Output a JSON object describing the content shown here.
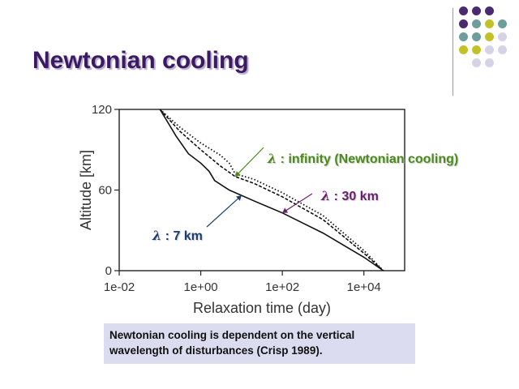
{
  "slide": {
    "title": "Newtonian cooling",
    "caption_line1": "Newtonian cooling is dependent on the vertical",
    "caption_line2": "wavelength of disturbances (Crisp 1989)."
  },
  "palette": {
    "title": "#3b1a63",
    "purple": "#4a2b6e",
    "teal": "#6e9e9a",
    "olive": "#c3c12a",
    "lavender": "#d6d3e6"
  },
  "decor_dot_colors": [
    [
      "purple",
      "purple",
      "purple",
      null
    ],
    [
      "purple",
      "teal",
      "olive",
      "teal"
    ],
    [
      "teal",
      "teal",
      "olive",
      "lavender"
    ],
    [
      "olive",
      "olive",
      "lavender",
      "lavender"
    ],
    [
      null,
      "lavender",
      "lavender",
      null
    ]
  ],
  "annotations": [
    {
      "symbol": "λ",
      "text": " : infinity (Newtonian cooling)",
      "color": "#4c8a1e",
      "series": "infinity"
    },
    {
      "symbol": "λ",
      "text": " : 30 km",
      "color": "#6a1f6e",
      "series": "30km"
    },
    {
      "symbol": "λ",
      "text": " : 7 km",
      "color": "#1d3f6e",
      "series": "7km"
    }
  ],
  "chart_data": {
    "type": "line",
    "xlabel": "Relaxation time (day)",
    "ylabel": "Altitude [km]",
    "xscale": "log",
    "xlim": [
      0.01,
      100000
    ],
    "ylim": [
      0,
      120
    ],
    "xticks": [
      "1e-02",
      "1e+00",
      "1e+02",
      "1e+04"
    ],
    "xtick_values": [
      0.01,
      1,
      100,
      10000
    ],
    "yticks": [
      "0",
      "60",
      "120"
    ],
    "ytick_values": [
      0,
      60,
      120
    ],
    "grid": false,
    "series": [
      {
        "name": "7km",
        "style": "solid",
        "x": [
          0.1,
          0.25,
          0.5,
          1,
          1.6,
          2.2,
          5,
          20,
          100,
          1000,
          10000,
          30000
        ],
        "y": [
          120,
          100,
          87,
          80,
          74,
          67,
          60,
          52,
          43,
          28,
          10,
          0
        ]
      },
      {
        "name": "30km",
        "style": "dashed",
        "x": [
          0.1,
          0.3,
          1,
          3,
          7,
          20,
          100,
          1000,
          10000,
          30000
        ],
        "y": [
          120,
          104,
          90,
          78,
          70,
          65,
          55,
          38,
          13,
          0
        ]
      },
      {
        "name": "infinity",
        "style": "dotted",
        "x": [
          0.1,
          0.3,
          1,
          3,
          5,
          7,
          20,
          100,
          1000,
          10000,
          30000
        ],
        "y": [
          120,
          107,
          95,
          86,
          80,
          72,
          68,
          58,
          41,
          15,
          0
        ]
      }
    ]
  }
}
